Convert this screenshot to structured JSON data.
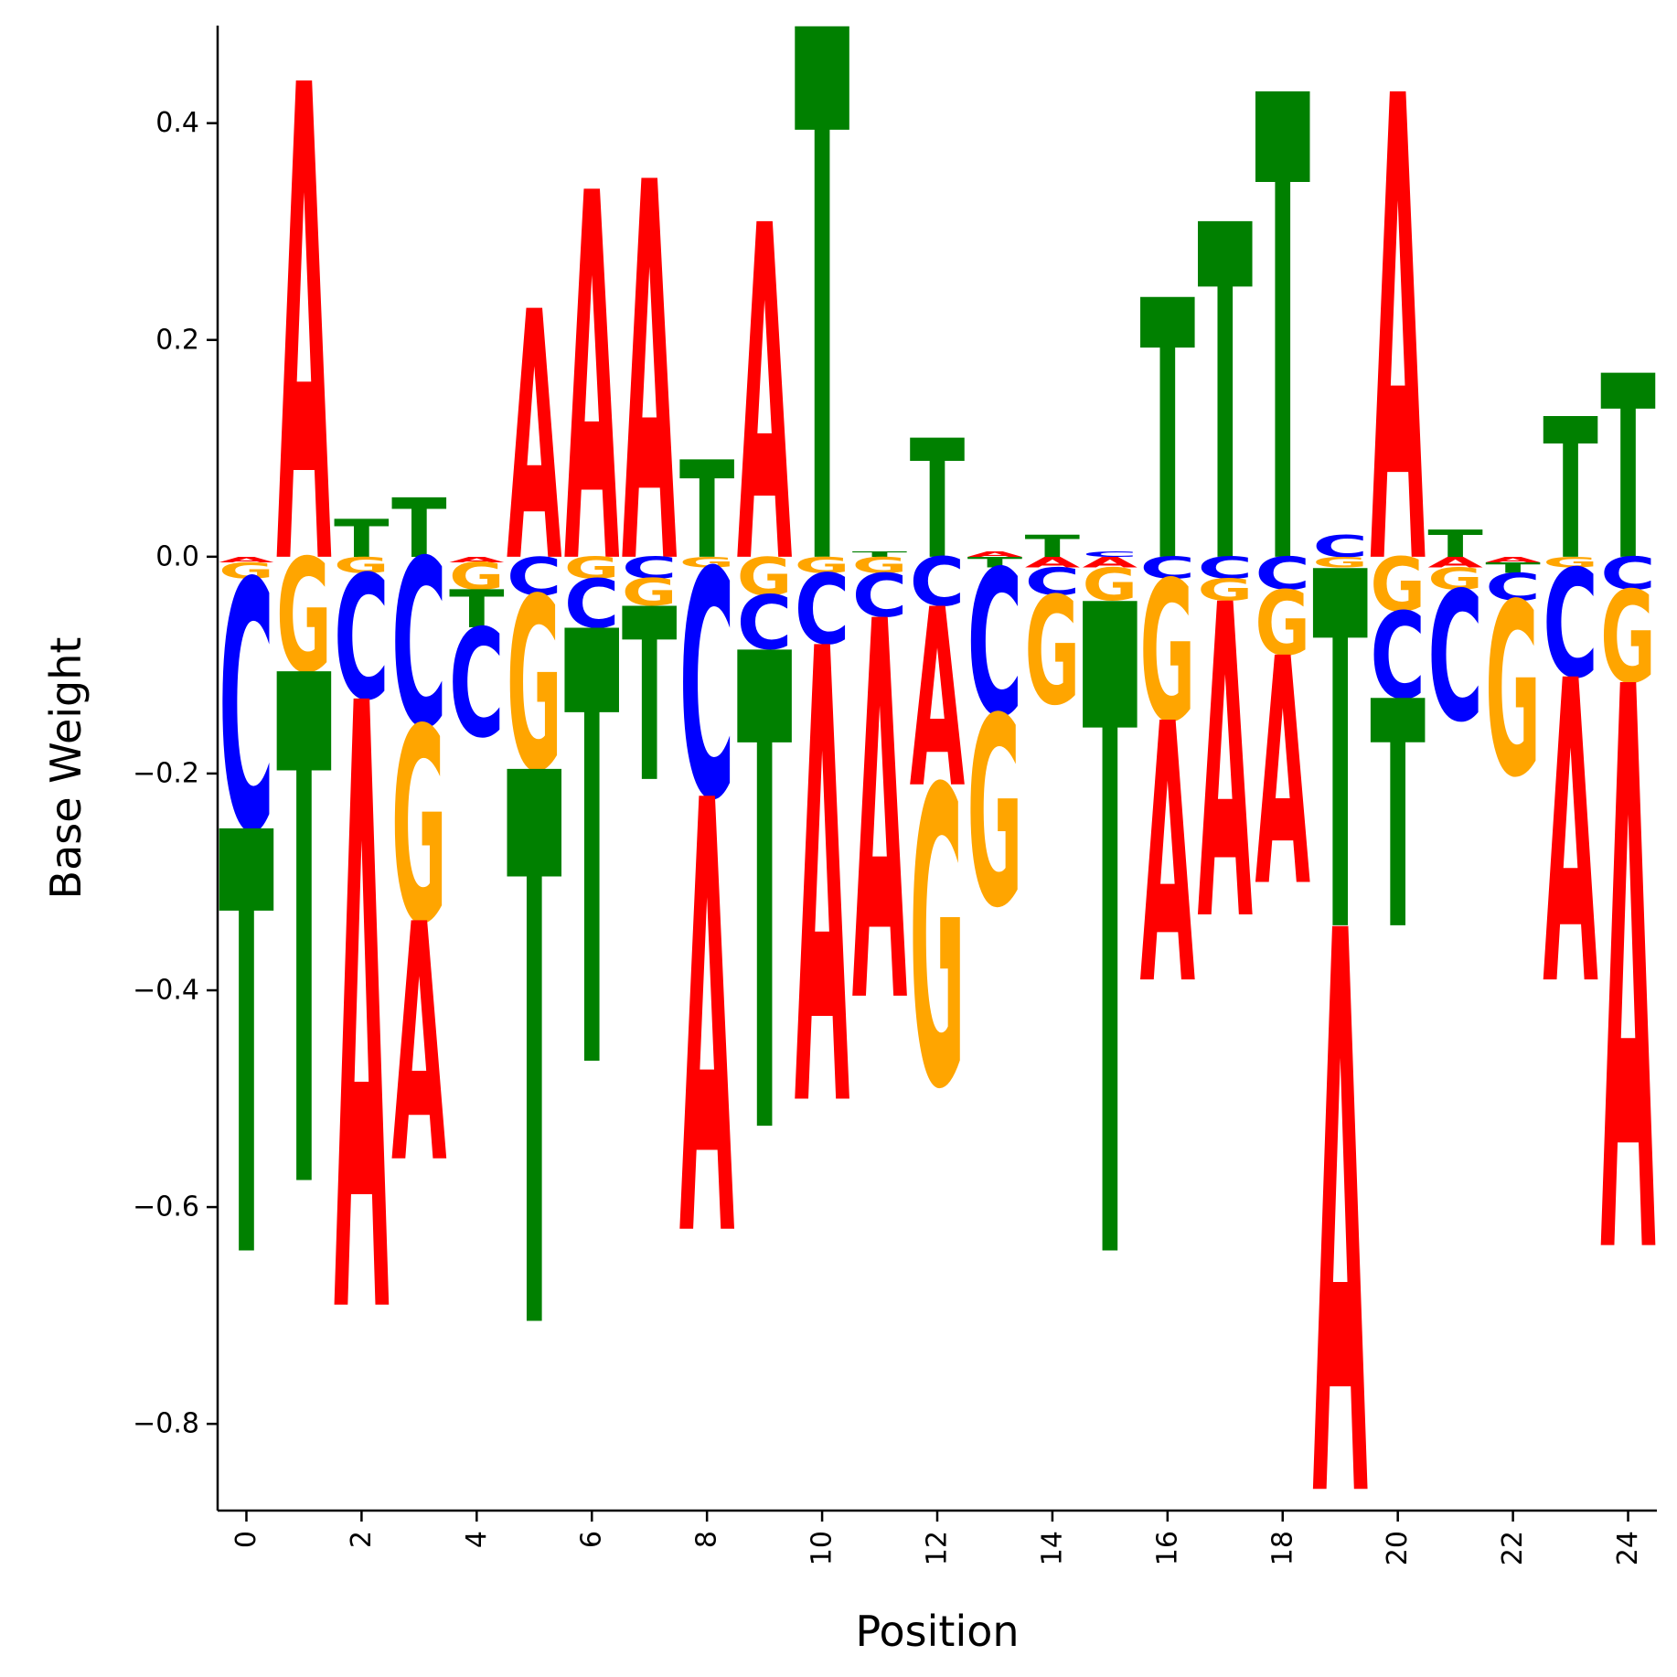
{
  "chart_data": {
    "type": "logo",
    "title": "",
    "xlabel": "Position",
    "ylabel": "Base Weight",
    "xlim": [
      -0.5,
      24.5
    ],
    "ylim": [
      -0.88,
      0.49
    ],
    "xticks": [
      0,
      2,
      4,
      6,
      8,
      10,
      12,
      14,
      16,
      18,
      20,
      22,
      24
    ],
    "xtick_labels": [
      "0",
      "2",
      "4",
      "6",
      "8",
      "10",
      "12",
      "14",
      "16",
      "18",
      "20",
      "22",
      "24"
    ],
    "yticks": [
      -0.8,
      -0.6,
      -0.4,
      -0.2,
      0.0,
      0.2,
      0.4
    ],
    "ytick_labels": [
      "−0.8",
      "−0.6",
      "−0.4",
      "−0.2",
      "0.0",
      "0.2",
      "0.4"
    ],
    "grid": false,
    "bases": [
      "A",
      "C",
      "G",
      "T"
    ],
    "colors": {
      "A": "#ff0000",
      "C": "#0000ff",
      "G": "#ffa500",
      "T": "#008000"
    },
    "positions": [
      {
        "position": 0,
        "A": -0.005,
        "C": -0.23,
        "G": -0.015,
        "T": -0.39
      },
      {
        "position": 1,
        "A": 0.44,
        "C": 0.0,
        "G": -0.105,
        "T": -0.47
      },
      {
        "position": 2,
        "A": -0.56,
        "C": -0.115,
        "G": -0.015,
        "T": 0.035
      },
      {
        "position": 3,
        "A": -0.22,
        "C": -0.155,
        "G": -0.18,
        "T": 0.055
      },
      {
        "position": 4,
        "A": -0.005,
        "C": -0.1,
        "G": -0.025,
        "T": -0.035
      },
      {
        "position": 5,
        "A": 0.23,
        "C": -0.035,
        "G": -0.16,
        "T": -0.51
      },
      {
        "position": 6,
        "A": 0.34,
        "C": -0.045,
        "G": -0.02,
        "T": -0.4
      },
      {
        "position": 7,
        "A": 0.35,
        "C": -0.02,
        "G": -0.025,
        "T": -0.16
      },
      {
        "position": 8,
        "A": -0.4,
        "C": -0.21,
        "G": -0.01,
        "T": 0.09
      },
      {
        "position": 9,
        "A": 0.31,
        "C": -0.05,
        "G": -0.035,
        "T": -0.44
      },
      {
        "position": 10,
        "A": -0.42,
        "C": -0.065,
        "G": -0.015,
        "T": 0.49
      },
      {
        "position": 11,
        "A": -0.35,
        "C": -0.04,
        "G": -0.015,
        "T": 0.005
      },
      {
        "position": 12,
        "A": -0.165,
        "C": -0.045,
        "G": -0.275,
        "T": 0.11
      },
      {
        "position": 13,
        "A": 0.005,
        "C": -0.135,
        "G": -0.175,
        "T": -0.01
      },
      {
        "position": 14,
        "A": -0.01,
        "C": -0.025,
        "G": -0.1,
        "T": 0.02
      },
      {
        "position": 15,
        "A": -0.01,
        "C": 0.005,
        "G": -0.03,
        "T": -0.6
      },
      {
        "position": 16,
        "A": -0.24,
        "C": -0.02,
        "G": -0.13,
        "T": 0.24
      },
      {
        "position": 17,
        "A": -0.29,
        "C": -0.02,
        "G": -0.02,
        "T": 0.31
      },
      {
        "position": 18,
        "A": -0.21,
        "C": -0.03,
        "G": -0.06,
        "T": 0.43
      },
      {
        "position": 19,
        "A": -0.52,
        "C": 0.02,
        "G": -0.01,
        "T": -0.33
      },
      {
        "position": 20,
        "A": 0.43,
        "C": -0.08,
        "G": -0.05,
        "T": -0.21
      },
      {
        "position": 21,
        "A": -0.01,
        "C": -0.12,
        "G": -0.02,
        "T": 0.025
      },
      {
        "position": 22,
        "A": -0.005,
        "C": -0.025,
        "G": -0.16,
        "T": -0.01
      },
      {
        "position": 23,
        "A": -0.28,
        "C": -0.1,
        "G": -0.01,
        "T": 0.13
      },
      {
        "position": 24,
        "A": -0.52,
        "C": -0.03,
        "G": -0.085,
        "T": 0.17
      }
    ]
  }
}
